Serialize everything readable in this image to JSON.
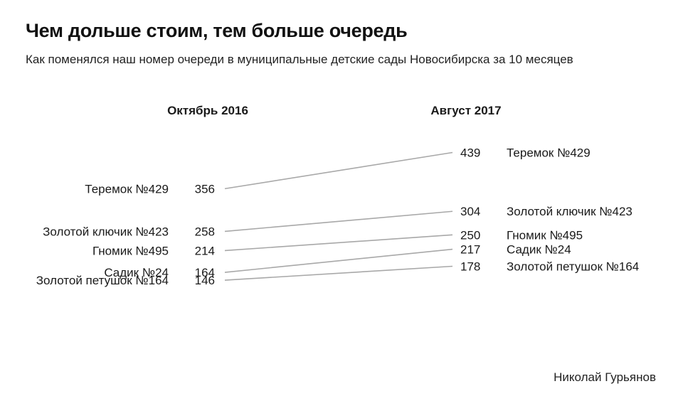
{
  "header": {
    "title": "Чем дольше стоим, тем больше очередь",
    "subtitle": "Как поменялся наш номер очереди в муниципальные детские сады Новосибирска за 10 месяцев"
  },
  "footer": {
    "credit": "Николай Гурьянов"
  },
  "chart_data": {
    "type": "slope",
    "columns": [
      "Октябрь 2016",
      "Август 2017"
    ],
    "series": [
      {
        "name": "Теремок №429",
        "values": [
          356,
          439
        ]
      },
      {
        "name": "Золотой ключик №423",
        "values": [
          258,
          304
        ]
      },
      {
        "name": "Гномик №495",
        "values": [
          214,
          250
        ]
      },
      {
        "name": "Садик №24",
        "values": [
          164,
          217
        ]
      },
      {
        "name": "Золотой петушок №164",
        "values": [
          146,
          178
        ]
      }
    ],
    "line_color": "#a8a8a8"
  }
}
